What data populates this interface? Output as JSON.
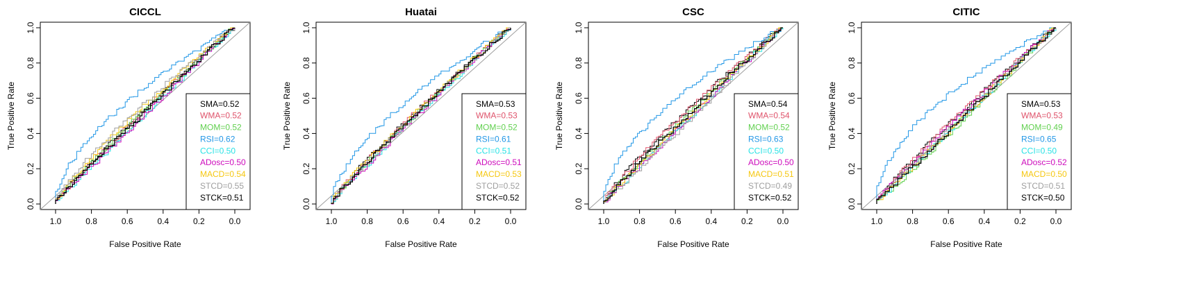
{
  "chart_data": {
    "type": "line",
    "shared": {
      "xlabel": "False Positive Rate",
      "ylabel": "True Positive Rate",
      "xlim": [
        1.0,
        0.0
      ],
      "ylim": [
        0.0,
        1.0
      ],
      "x_ticks": [
        "1.0",
        "0.8",
        "0.6",
        "0.4",
        "0.2",
        "0.0"
      ],
      "y_ticks": [
        "0.0",
        "0.2",
        "0.4",
        "0.6",
        "0.8",
        "1.0"
      ],
      "legend_position": "bottom-right",
      "reference_line": "diagonal",
      "series_colors": {
        "SMA": "#000000",
        "WMA": "#df536b",
        "MOM": "#61d04f",
        "RSI": "#2297e6",
        "CCI": "#28e2e5",
        "ADosc": "#cd0bbc",
        "MACD": "#f5c710",
        "STCD": "#9e9e9e",
        "STCK": "#000000"
      }
    },
    "panels": [
      {
        "title": "CICCL",
        "series": [
          {
            "name": "SMA",
            "auc": "0.52",
            "label": "SMA=0.52"
          },
          {
            "name": "WMA",
            "auc": "0.52",
            "label": "WMA=0.52"
          },
          {
            "name": "MOM",
            "auc": "0.52",
            "label": "MOM=0.52"
          },
          {
            "name": "RSI",
            "auc": "0.62",
            "label": "RSI=0.62"
          },
          {
            "name": "CCI",
            "auc": "0.50",
            "label": "CCI=0.50"
          },
          {
            "name": "ADosc",
            "auc": "0.50",
            "label": "ADosc=0.50"
          },
          {
            "name": "MACD",
            "auc": "0.54",
            "label": "MACD=0.54"
          },
          {
            "name": "STCD",
            "auc": "0.55",
            "label": "STCD=0.55"
          },
          {
            "name": "STCK",
            "auc": "0.51",
            "label": "STCK=0.51"
          }
        ]
      },
      {
        "title": "Huatai",
        "series": [
          {
            "name": "SMA",
            "auc": "0.53",
            "label": "SMA=0.53"
          },
          {
            "name": "WMA",
            "auc": "0.53",
            "label": "WMA=0.53"
          },
          {
            "name": "MOM",
            "auc": "0.52",
            "label": "MOM=0.52"
          },
          {
            "name": "RSI",
            "auc": "0.61",
            "label": "RSI=0.61"
          },
          {
            "name": "CCI",
            "auc": "0.51",
            "label": "CCI=0.51"
          },
          {
            "name": "ADosc",
            "auc": "0.51",
            "label": "ADosc=0.51"
          },
          {
            "name": "MACD",
            "auc": "0.53",
            "label": "MACD=0.53"
          },
          {
            "name": "STCD",
            "auc": "0.52",
            "label": "STCD=0.52"
          },
          {
            "name": "STCK",
            "auc": "0.52",
            "label": "STCK=0.52"
          }
        ]
      },
      {
        "title": "CSC",
        "series": [
          {
            "name": "SMA",
            "auc": "0.54",
            "label": "SMA=0.54"
          },
          {
            "name": "WMA",
            "auc": "0.54",
            "label": "WMA=0.54"
          },
          {
            "name": "MOM",
            "auc": "0.52",
            "label": "MOM=0.52"
          },
          {
            "name": "RSI",
            "auc": "0.63",
            "label": "RSI=0.63"
          },
          {
            "name": "CCI",
            "auc": "0.50",
            "label": "CCI=0.50"
          },
          {
            "name": "ADosc",
            "auc": "0.50",
            "label": "ADosc=0.50"
          },
          {
            "name": "MACD",
            "auc": "0.51",
            "label": "MACD=0.51"
          },
          {
            "name": "STCD",
            "auc": "0.49",
            "label": "STCD=0.49"
          },
          {
            "name": "STCK",
            "auc": "0.52",
            "label": "STCK=0.52"
          }
        ]
      },
      {
        "title": "CITIC",
        "series": [
          {
            "name": "SMA",
            "auc": "0.53",
            "label": "SMA=0.53"
          },
          {
            "name": "WMA",
            "auc": "0.53",
            "label": "WMA=0.53"
          },
          {
            "name": "MOM",
            "auc": "0.49",
            "label": "MOM=0.49"
          },
          {
            "name": "RSI",
            "auc": "0.65",
            "label": "RSI=0.65"
          },
          {
            "name": "CCI",
            "auc": "0.50",
            "label": "CCI=0.50"
          },
          {
            "name": "ADosc",
            "auc": "0.52",
            "label": "ADosc=0.52"
          },
          {
            "name": "MACD",
            "auc": "0.50",
            "label": "MACD=0.50"
          },
          {
            "name": "STCD",
            "auc": "0.51",
            "label": "STCD=0.51"
          },
          {
            "name": "STCK",
            "auc": "0.50",
            "label": "STCK=0.50"
          }
        ]
      }
    ]
  }
}
